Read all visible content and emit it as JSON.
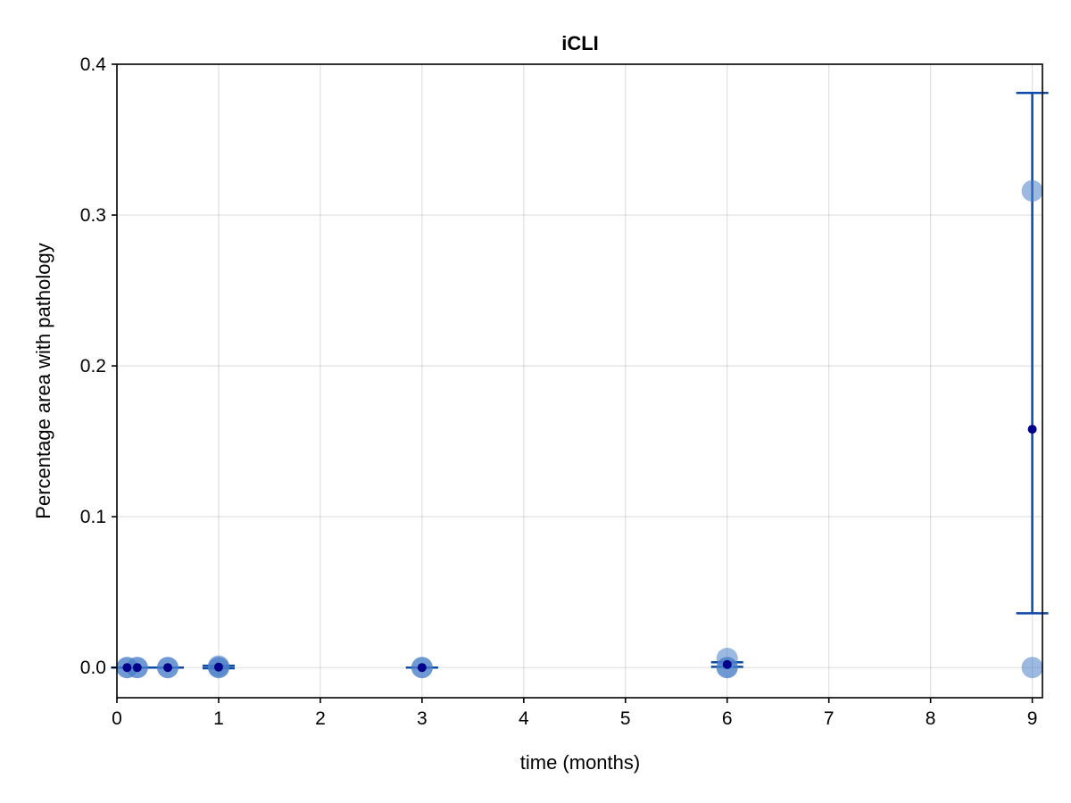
{
  "chart_data": {
    "type": "scatter",
    "title": "iCLI",
    "xlabel": "time (months)",
    "ylabel": "Percentage area with pathology",
    "xlim": [
      0,
      9.1
    ],
    "ylim": [
      -0.02,
      0.4
    ],
    "xticks": [
      0,
      1,
      2,
      3,
      4,
      5,
      6,
      7,
      8,
      9
    ],
    "yticks": [
      0.0,
      0.1,
      0.2,
      0.3,
      0.4
    ],
    "xtick_labels": [
      "0",
      "1",
      "2",
      "3",
      "4",
      "5",
      "6",
      "7",
      "8",
      "9"
    ],
    "ytick_labels": [
      "0.0",
      "0.1",
      "0.2",
      "0.3",
      "0.4"
    ],
    "grid": true,
    "colors": {
      "points": "#4a7fc9",
      "mean": "#00008b",
      "errorbar": "#0d4aa6"
    },
    "points": [
      {
        "x": 0.1,
        "y": 0.0
      },
      {
        "x": 0.1,
        "y": 0.0
      },
      {
        "x": 0.2,
        "y": 0.0
      },
      {
        "x": 0.2,
        "y": 0.0
      },
      {
        "x": 0.5,
        "y": 0.0
      },
      {
        "x": 0.5,
        "y": 0.0
      },
      {
        "x": 1.0,
        "y": 0.0
      },
      {
        "x": 1.0,
        "y": 0.0
      },
      {
        "x": 1.0,
        "y": 0.001
      },
      {
        "x": 3.0,
        "y": 0.0
      },
      {
        "x": 3.0,
        "y": 0.0
      },
      {
        "x": 6.0,
        "y": 0.0
      },
      {
        "x": 6.0,
        "y": 0.0
      },
      {
        "x": 6.0,
        "y": 0.006
      },
      {
        "x": 9.0,
        "y": 0.0
      },
      {
        "x": 9.0,
        "y": 0.316
      }
    ],
    "means": [
      {
        "x": 0.1,
        "y": 0.0,
        "low": 0.0,
        "high": 0.0
      },
      {
        "x": 0.2,
        "y": 0.0,
        "low": 0.0,
        "high": 0.0
      },
      {
        "x": 0.5,
        "y": 0.0,
        "low": 0.0,
        "high": 0.0
      },
      {
        "x": 1.0,
        "y": 0.0003,
        "low": -0.0005,
        "high": 0.0012
      },
      {
        "x": 3.0,
        "y": 0.0,
        "low": 0.0,
        "high": 0.0
      },
      {
        "x": 6.0,
        "y": 0.002,
        "low": 0.0005,
        "high": 0.0035
      },
      {
        "x": 9.0,
        "y": 0.158,
        "low": 0.036,
        "high": 0.381
      }
    ]
  }
}
